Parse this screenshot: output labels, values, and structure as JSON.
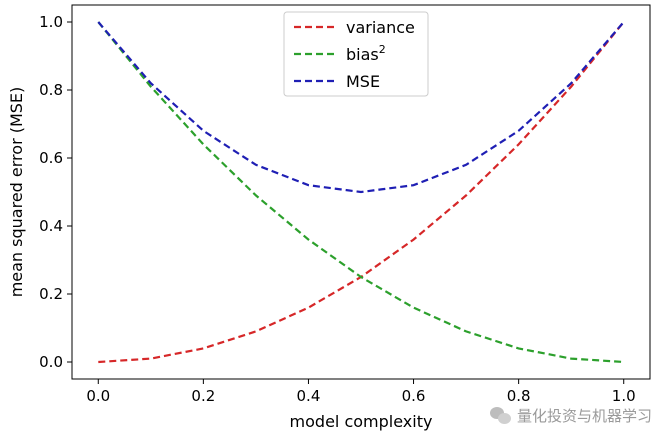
{
  "chart_data": {
    "type": "line",
    "title": "",
    "xlabel": "model complexity",
    "ylabel": "mean squared error (MSE)",
    "xlim": [
      -0.05,
      1.05
    ],
    "ylim": [
      -0.05,
      1.05
    ],
    "xticks": [
      0.0,
      0.2,
      0.4,
      0.6,
      0.8,
      1.0
    ],
    "xtick_labels": [
      "0.0",
      "0.2",
      "0.4",
      "0.6",
      "0.8",
      "1.0"
    ],
    "yticks": [
      0.0,
      0.2,
      0.4,
      0.6,
      0.8,
      1.0
    ],
    "ytick_labels": [
      "0.0",
      "0.2",
      "0.4",
      "0.6",
      "0.8",
      "1.0"
    ],
    "grid": false,
    "legend_position": "top-center",
    "x": [
      0.0,
      0.1,
      0.2,
      0.3,
      0.4,
      0.5,
      0.6,
      0.7,
      0.8,
      0.9,
      1.0
    ],
    "series": [
      {
        "name": "variance",
        "color": "#d62728",
        "style": "dashed",
        "values": [
          0.0,
          0.01,
          0.04,
          0.09,
          0.16,
          0.25,
          0.36,
          0.49,
          0.64,
          0.81,
          1.0
        ]
      },
      {
        "name": "bias",
        "name_superscript": "2",
        "color": "#2ca02c",
        "style": "dashed",
        "values": [
          1.0,
          0.81,
          0.64,
          0.49,
          0.36,
          0.25,
          0.16,
          0.09,
          0.04,
          0.01,
          0.0
        ]
      },
      {
        "name": "MSE",
        "color": "#1f1fb4",
        "style": "dashed",
        "values": [
          1.0,
          0.82,
          0.68,
          0.58,
          0.52,
          0.5,
          0.52,
          0.58,
          0.68,
          0.82,
          1.0
        ]
      }
    ]
  },
  "watermark": {
    "icon": "wechat-icon",
    "text": "量化投资与机器学习"
  }
}
